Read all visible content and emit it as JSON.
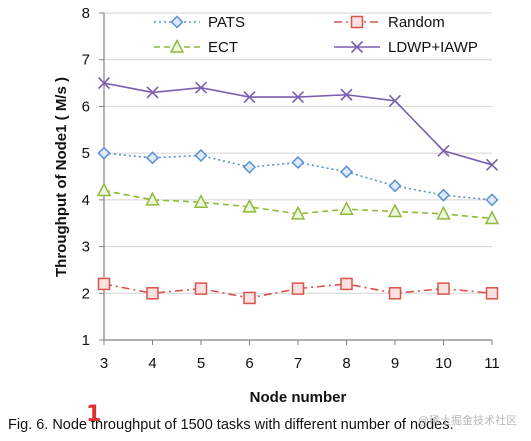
{
  "chart_data": {
    "type": "line",
    "title": "",
    "xlabel": "Node number",
    "ylabel": "Throughput of Node1 ( M/s )",
    "x": [
      3,
      4,
      5,
      6,
      7,
      8,
      9,
      10,
      11
    ],
    "xlim": [
      3,
      11
    ],
    "ylim": [
      1,
      8
    ],
    "yticks": [
      1,
      2,
      3,
      4,
      5,
      6,
      7,
      8
    ],
    "grid": "horizontal",
    "legend_position": "top",
    "series": [
      {
        "name": "PATS",
        "values": [
          5.0,
          4.9,
          4.95,
          4.7,
          4.8,
          4.6,
          4.3,
          4.1,
          4.0
        ],
        "color": "#5b8fd4",
        "marker": "diamond",
        "dash": "dotted"
      },
      {
        "name": "Random",
        "values": [
          2.2,
          2.0,
          2.1,
          1.9,
          2.1,
          2.2,
          2.0,
          2.1,
          2.0
        ],
        "color": "#d9534f",
        "marker": "square",
        "dash": "dash-dot"
      },
      {
        "name": "ECT",
        "values": [
          4.2,
          4.0,
          3.95,
          3.85,
          3.7,
          3.8,
          3.75,
          3.7,
          3.6
        ],
        "color": "#8fba3a",
        "marker": "triangle",
        "dash": "dashed"
      },
      {
        "name": "LDWP+IAWP",
        "values": [
          6.5,
          6.3,
          6.4,
          6.2,
          6.2,
          6.25,
          6.12,
          5.05,
          4.75
        ],
        "color": "#7a5fb0",
        "marker": "x",
        "dash": "solid"
      }
    ]
  },
  "caption": "Fig. 6. Node throughput of 1500 tasks with different number of nodes.",
  "annotation_mark": "1",
  "watermark": "@稀土掘金技术社区"
}
